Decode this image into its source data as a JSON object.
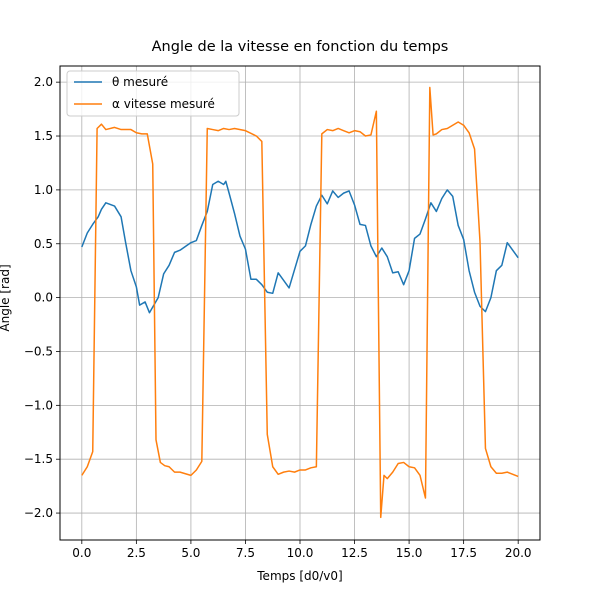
{
  "chart_data": {
    "type": "line",
    "title": "Angle de la vitesse en fonction du temps",
    "xlabel": "Temps [d0/v0]",
    "ylabel": "Angle [rad]",
    "xlim": [
      -1.0,
      21.0
    ],
    "ylim": [
      -2.25,
      2.15
    ],
    "xticks": [
      0.0,
      2.5,
      5.0,
      7.5,
      10.0,
      12.5,
      15.0,
      17.5,
      20.0
    ],
    "xtick_labels": [
      "0.0",
      "2.5",
      "5.0",
      "7.5",
      "10.0",
      "12.5",
      "15.0",
      "17.5",
      "20.0"
    ],
    "yticks": [
      -2.0,
      -1.5,
      -1.0,
      -0.5,
      0.0,
      0.5,
      1.0,
      1.5,
      2.0
    ],
    "ytick_labels": [
      "−2.0",
      "−1.5",
      "−1.0",
      "−0.5",
      "0.0",
      "0.5",
      "1.0",
      "1.5",
      "2.0"
    ],
    "grid": true,
    "legend_position": "top-left",
    "series": [
      {
        "name": "θ mesuré",
        "color": "#1f77b4",
        "x": [
          0.0,
          0.25,
          0.5,
          0.75,
          0.9,
          1.1,
          1.5,
          1.8,
          2.0,
          2.25,
          2.5,
          2.65,
          2.9,
          3.1,
          3.5,
          3.75,
          4.0,
          4.25,
          4.5,
          5.0,
          5.25,
          5.5,
          5.75,
          6.0,
          6.25,
          6.5,
          6.6,
          6.75,
          7.0,
          7.25,
          7.5,
          7.75,
          8.0,
          8.25,
          8.5,
          8.75,
          9.0,
          9.5,
          10.0,
          10.25,
          10.5,
          10.75,
          11.0,
          11.25,
          11.5,
          11.75,
          12.0,
          12.25,
          12.5,
          12.75,
          13.0,
          13.25,
          13.5,
          13.75,
          14.0,
          14.25,
          14.5,
          14.75,
          15.0,
          15.25,
          15.5,
          15.75,
          16.0,
          16.25,
          16.5,
          16.75,
          17.0,
          17.25,
          17.5,
          17.75,
          18.0,
          18.25,
          18.5,
          18.75,
          19.0,
          19.25,
          19.5,
          20.0
        ],
        "y": [
          0.47,
          0.6,
          0.68,
          0.75,
          0.82,
          0.88,
          0.85,
          0.75,
          0.52,
          0.25,
          0.1,
          -0.07,
          -0.04,
          -0.14,
          0.0,
          0.22,
          0.3,
          0.42,
          0.44,
          0.51,
          0.53,
          0.67,
          0.8,
          1.05,
          1.08,
          1.05,
          1.08,
          0.97,
          0.78,
          0.57,
          0.45,
          0.17,
          0.17,
          0.12,
          0.05,
          0.04,
          0.23,
          0.09,
          0.43,
          0.48,
          0.68,
          0.85,
          0.95,
          0.87,
          0.99,
          0.93,
          0.97,
          0.99,
          0.86,
          0.68,
          0.67,
          0.48,
          0.38,
          0.46,
          0.38,
          0.23,
          0.24,
          0.12,
          0.25,
          0.55,
          0.59,
          0.73,
          0.88,
          0.8,
          0.92,
          1.0,
          0.94,
          0.67,
          0.54,
          0.25,
          0.05,
          -0.08,
          -0.13,
          0.0,
          0.25,
          0.3,
          0.51,
          0.37
        ]
      },
      {
        "name": "α vitesse mesuré",
        "color": "#ff7f0e",
        "x": [
          0.0,
          0.25,
          0.5,
          0.7,
          0.9,
          1.1,
          1.5,
          1.8,
          2.0,
          2.25,
          2.5,
          2.75,
          3.0,
          3.25,
          3.4,
          3.6,
          3.8,
          4.0,
          4.25,
          4.5,
          5.0,
          5.25,
          5.5,
          5.75,
          6.0,
          6.25,
          6.5,
          6.75,
          7.0,
          7.5,
          8.0,
          8.25,
          8.5,
          8.75,
          9.0,
          9.25,
          9.5,
          9.75,
          10.0,
          10.25,
          10.5,
          10.75,
          11.0,
          11.25,
          11.5,
          11.75,
          12.0,
          12.25,
          12.5,
          12.75,
          13.0,
          13.25,
          13.5,
          13.7,
          13.85,
          14.0,
          14.25,
          14.5,
          14.75,
          15.0,
          15.25,
          15.5,
          15.75,
          15.95,
          16.1,
          16.25,
          16.5,
          16.75,
          17.0,
          17.25,
          17.5,
          17.75,
          18.0,
          18.25,
          18.5,
          18.75,
          19.0,
          19.25,
          19.5,
          20.0
        ],
        "y": [
          -1.65,
          -1.57,
          -1.43,
          1.57,
          1.61,
          1.56,
          1.58,
          1.56,
          1.56,
          1.56,
          1.53,
          1.52,
          1.52,
          1.24,
          -1.32,
          -1.53,
          -1.56,
          -1.57,
          -1.62,
          -1.62,
          -1.65,
          -1.6,
          -1.52,
          1.57,
          1.56,
          1.55,
          1.57,
          1.56,
          1.57,
          1.55,
          1.5,
          1.45,
          -1.27,
          -1.57,
          -1.64,
          -1.62,
          -1.61,
          -1.62,
          -1.6,
          -1.6,
          -1.58,
          -1.57,
          1.52,
          1.56,
          1.55,
          1.57,
          1.55,
          1.53,
          1.55,
          1.54,
          1.5,
          1.51,
          1.73,
          -2.04,
          -1.65,
          -1.68,
          -1.62,
          -1.54,
          -1.53,
          -1.57,
          -1.58,
          -1.65,
          -1.86,
          1.95,
          1.51,
          1.52,
          1.56,
          1.57,
          1.6,
          1.63,
          1.6,
          1.53,
          1.38,
          0.52,
          -1.4,
          -1.57,
          -1.63,
          -1.63,
          -1.62,
          -1.66
        ]
      }
    ]
  }
}
